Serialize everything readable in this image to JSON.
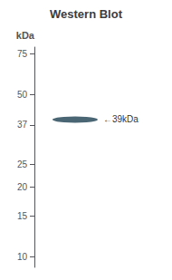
{
  "chart_data": {
    "type": "band",
    "title": "Western Blot",
    "y_label": "kDa",
    "categories": [
      null
    ],
    "values": [
      39
    ],
    "color": "#2a4a5a",
    "annotation": "←39kDa",
    "log": "y",
    "ylim": [
      9,
      80
    ],
    "yticks": [
      75,
      50,
      37,
      25,
      20,
      15,
      10
    ],
    "grid": false,
    "tick_labels": "y"
  }
}
